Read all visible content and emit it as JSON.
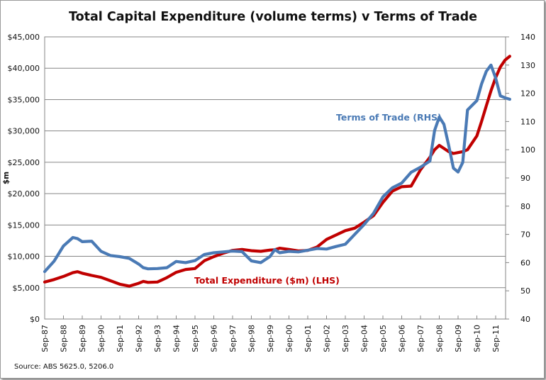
{
  "chart_data": {
    "type": "line",
    "title": "Total Capital Expenditure (volume terms) v Terms of Trade",
    "ylabel": "$m",
    "ylabel_right": "",
    "xlabel": "",
    "source": "Source: ABS 5625.0, 5206.0",
    "ylim": [
      0,
      45000
    ],
    "ylim_right": [
      40,
      140
    ],
    "y_ticks": [
      "$0",
      "$5,000",
      "$10,000",
      "$15,000",
      "$20,000",
      "$25,000",
      "$30,000",
      "$35,000",
      "$40,000",
      "$45,000"
    ],
    "y_ticks_right": [
      "40",
      "50",
      "60",
      "70",
      "80",
      "90",
      "100",
      "110",
      "120",
      "130",
      "140"
    ],
    "x_ticks": [
      "Sep-87",
      "Sep-88",
      "Sep-89",
      "Sep-90",
      "Sep-91",
      "Sep-92",
      "Sep-93",
      "Sep-94",
      "Sep-95",
      "Sep-96",
      "Sep-97",
      "Sep-98",
      "Sep-99",
      "Sep-00",
      "Sep-01",
      "Sep-02",
      "Sep-03",
      "Sep-04",
      "Sep-05",
      "Sep-06",
      "Sep-07",
      "Sep-08",
      "Sep-09",
      "Sep-10",
      "Sep-11"
    ],
    "grid": true,
    "x_frequency": "quarterly from Sep-87",
    "quarter_index": [
      0,
      2,
      4,
      6,
      7,
      8,
      10,
      12,
      14,
      16,
      18,
      20,
      21,
      22,
      24,
      26,
      28,
      30,
      32,
      34,
      36,
      38,
      40,
      42,
      44,
      46,
      48,
      49,
      50,
      52,
      54,
      56,
      58,
      60,
      62,
      64,
      66,
      68,
      70,
      72,
      74,
      76,
      78,
      80,
      82,
      83,
      84,
      85,
      86,
      87,
      88,
      89,
      90,
      92,
      93,
      94,
      95,
      96,
      97,
      98,
      99
    ],
    "series": [
      {
        "name": "Total Expenditure ($m) (LHS)",
        "axis": "left",
        "color": "#c00000",
        "values": [
          5900,
          6300,
          6800,
          7400,
          7550,
          7300,
          6950,
          6650,
          6100,
          5550,
          5250,
          5700,
          6000,
          5850,
          5900,
          6600,
          7450,
          7900,
          8050,
          9300,
          9950,
          10500,
          10950,
          11100,
          10900,
          10800,
          11000,
          11050,
          11300,
          11100,
          10850,
          10950,
          11500,
          12700,
          13400,
          14100,
          14500,
          15450,
          16500,
          18600,
          20400,
          21100,
          21200,
          23800,
          25800,
          27000,
          27700,
          27200,
          26700,
          26400,
          26550,
          26700,
          27000,
          29200,
          31500,
          34000,
          36400,
          38500,
          40200,
          41300,
          41900
        ],
        "label_text": "Total Expenditure ($m) (LHS)"
      },
      {
        "name": "Terms of Trade (RHS)",
        "axis": "right",
        "color": "#4a7ab5",
        "values": [
          56.8,
          60.5,
          65.9,
          68.9,
          68.5,
          67.4,
          67.6,
          64.0,
          62.5,
          62.1,
          61.5,
          59.5,
          58.2,
          57.8,
          57.9,
          58.2,
          60.4,
          60.0,
          60.7,
          62.9,
          63.5,
          63.8,
          64.1,
          63.9,
          60.6,
          60.0,
          62.2,
          64.6,
          63.5,
          64.0,
          63.8,
          64.4,
          65.0,
          64.8,
          65.7,
          66.5,
          70.0,
          73.5,
          77.5,
          83.3,
          86.5,
          88.2,
          92.0,
          93.8,
          96.0,
          106.8,
          111.6,
          109.0,
          101.5,
          93.5,
          92.1,
          95.5,
          114.1,
          117.4,
          123.3,
          127.8,
          130.0,
          125.4,
          119.1,
          118.4,
          117.9
        ],
        "label_text": "Terms of Trade (RHS)"
      }
    ],
    "legend": "inline labels (Terms of Trade near top-right, Total Expenditure near bottom-center)"
  }
}
